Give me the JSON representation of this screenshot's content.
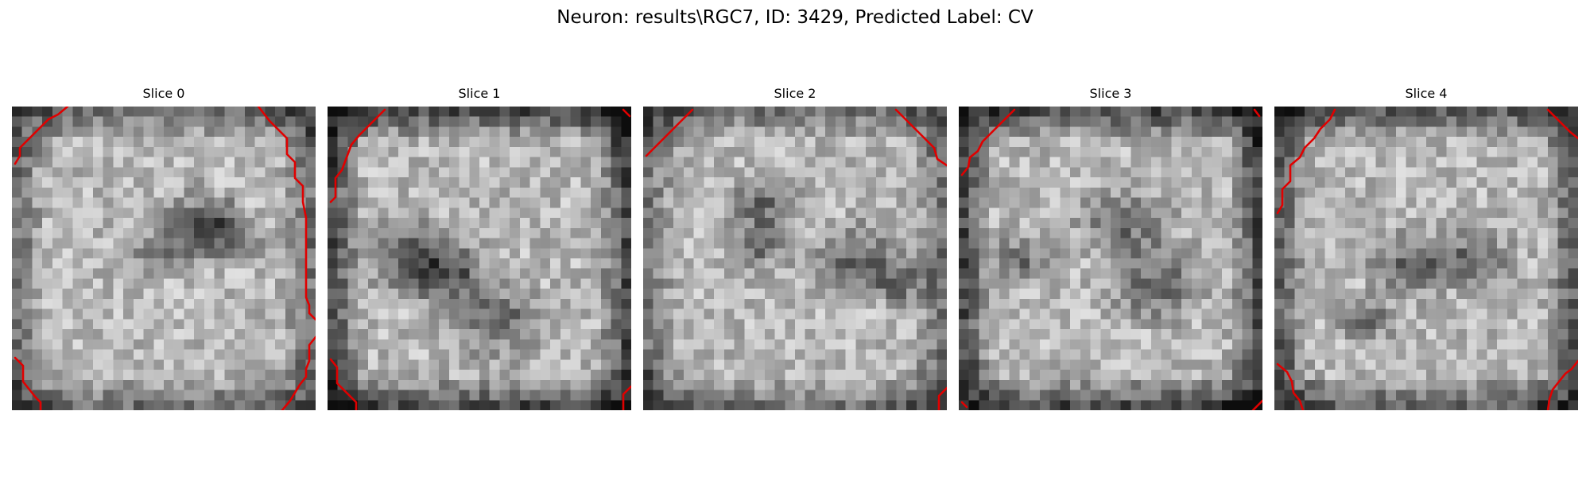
{
  "figure": {
    "title": "Neuron: results\\RGC7, ID: 3429, Predicted Label: CV"
  },
  "slices": [
    {
      "label": "Slice 0",
      "seed": 11,
      "dark_blobs": [
        [
          0.62,
          0.38,
          0.08
        ],
        [
          0.7,
          0.42,
          0.07
        ],
        [
          0.5,
          0.47,
          0.06
        ]
      ],
      "corner_dark": 0.35
    },
    {
      "label": "Slice 1",
      "seed": 23,
      "dark_blobs": [
        [
          0.28,
          0.5,
          0.1
        ],
        [
          0.55,
          0.7,
          0.1
        ],
        [
          0.4,
          0.55,
          0.08
        ]
      ],
      "corner_dark": 0.55
    },
    {
      "label": "Slice 2",
      "seed": 37,
      "dark_blobs": [
        [
          0.38,
          0.32,
          0.07
        ],
        [
          0.7,
          0.5,
          0.09
        ],
        [
          0.85,
          0.58,
          0.06
        ],
        [
          0.4,
          0.45,
          0.06
        ]
      ],
      "corner_dark": 0.35
    },
    {
      "label": "Slice 3",
      "seed": 41,
      "dark_blobs": [
        [
          0.55,
          0.38,
          0.09
        ],
        [
          0.65,
          0.58,
          0.1
        ],
        [
          0.2,
          0.5,
          0.06
        ]
      ],
      "corner_dark": 0.55
    },
    {
      "label": "Slice 4",
      "seed": 53,
      "dark_blobs": [
        [
          0.45,
          0.52,
          0.08
        ],
        [
          0.65,
          0.5,
          0.08
        ],
        [
          0.3,
          0.7,
          0.06
        ]
      ],
      "corner_dark": 0.45
    }
  ],
  "colors": {
    "contour": "#e00000",
    "colormap": "gray"
  }
}
